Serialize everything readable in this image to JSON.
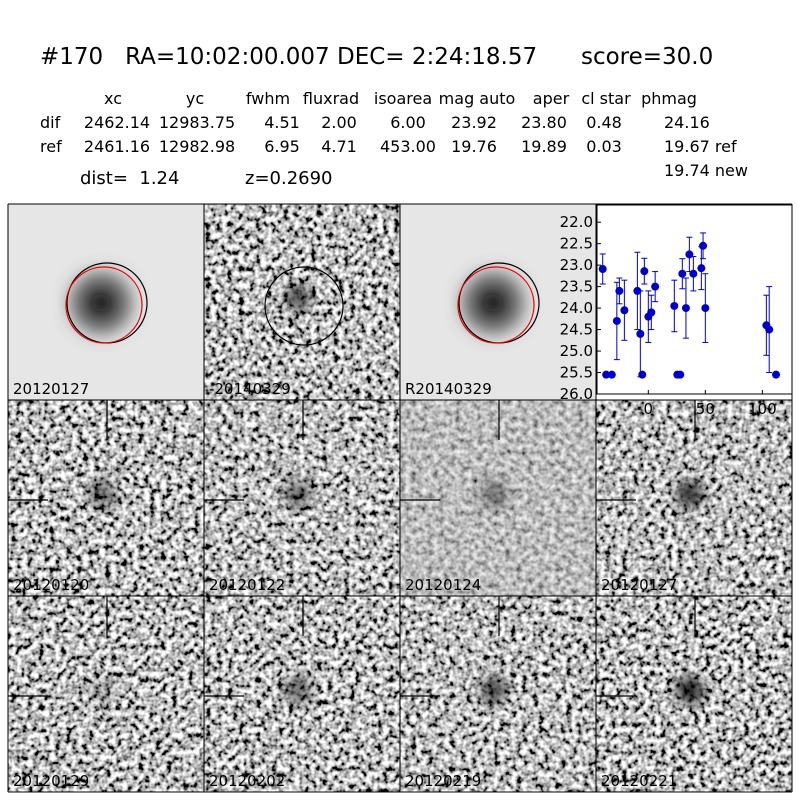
{
  "header": {
    "title": "#170   RA=10:02:00.007 DEC= 2:24:18.57      score=30.0",
    "columns": [
      "xc",
      "yc",
      "fwhm",
      "fluxrad",
      "isoarea",
      "mag auto",
      "aper",
      "cl star",
      "phmag"
    ],
    "rows": [
      [
        "dif",
        "2462.14",
        "12983.75",
        "4.51",
        "2.00",
        "6.00",
        "23.92",
        "23.80",
        "0.48",
        "24.16"
      ],
      [
        "ref",
        "2461.16",
        "12982.98",
        "6.95",
        "4.71",
        "453.00",
        "19.76",
        "19.89",
        "0.03",
        "19.67 ref"
      ]
    ],
    "extra": "19.74 new",
    "dist": "dist=  1.24",
    "z": "z=0.2690"
  },
  "stamps": [
    {
      "label": "20120127"
    },
    {
      "label": "-20140329"
    },
    {
      "label": "R20140329"
    },
    {
      "label": "20120120"
    },
    {
      "label": "20120122"
    },
    {
      "label": "20120124"
    },
    {
      "label": "20120127",
      "color": "#ff0000"
    },
    {
      "label": "20120129"
    },
    {
      "label": "20120202"
    },
    {
      "label": "20120219"
    },
    {
      "label": "20120221"
    }
  ],
  "chart_data": {
    "type": "errorbar",
    "color": "#0000cc",
    "x": [
      -40,
      -37,
      -32,
      -27.6,
      -25.4,
      -21,
      -9.6,
      -7,
      -5.3,
      -3.5,
      0,
      2.6,
      6,
      22.8,
      25.4,
      28,
      29.8,
      33,
      36,
      39.5,
      46.5,
      48,
      50,
      103.5,
      106,
      112
    ],
    "values": [
      23.09,
      25.55,
      25.55,
      24.3,
      23.6,
      24.05,
      23.6,
      24.6,
      25.55,
      23.14,
      24.2,
      24.1,
      23.5,
      23.95,
      25.55,
      25.55,
      23.2,
      24.0,
      22.75,
      23.2,
      23.07,
      22.55,
      24.0,
      24.4,
      24.5,
      25.55
    ],
    "errors": [
      0.35,
      0.05,
      0.05,
      0.9,
      0.3,
      0.7,
      0.9,
      1.0,
      0.05,
      0.3,
      0.6,
      0.4,
      0.35,
      0.6,
      0.05,
      0.05,
      0.35,
      0.7,
      0.4,
      0.4,
      0.5,
      0.3,
      0.8,
      0.7,
      1.0,
      0.05
    ],
    "xlim": [
      -45,
      126
    ],
    "ylim": [
      21.6,
      26
    ],
    "y_inverted": true,
    "xticks": [
      0,
      50,
      100
    ],
    "yticks": [
      {
        "value": 22,
        "label": "22.0"
      },
      22.5,
      {
        "value": 23,
        "label": "23.0"
      },
      23.5,
      {
        "value": 24,
        "label": "24.0"
      },
      24.5,
      {
        "value": 25,
        "label": "25.0"
      },
      25.5,
      {
        "value": 26,
        "label": "26.0"
      }
    ]
  }
}
